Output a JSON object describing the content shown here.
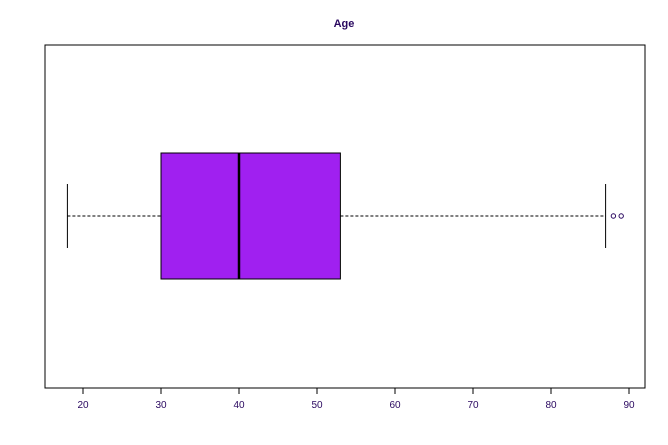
{
  "chart_data": {
    "type": "boxplot",
    "title": "Age",
    "xlabel": "",
    "ylabel": "",
    "orientation": "horizontal",
    "xlim": [
      15,
      92
    ],
    "x_ticks": [
      20,
      30,
      40,
      50,
      60,
      70,
      80,
      90
    ],
    "tick_labels": [
      "20",
      "30",
      "40",
      "50",
      "60",
      "70",
      "80",
      "90"
    ],
    "stats": {
      "whisker_low": 18,
      "q1": 30,
      "median": 40,
      "q3": 53,
      "whisker_high": 87
    },
    "outliers": [
      88,
      89
    ],
    "grid": false,
    "legend": "none",
    "colors": {
      "box_fill": "#A020F0",
      "box_border": "#000000",
      "text": "#2A0860",
      "axis": "#000000",
      "whisker": "#000000",
      "outlier": "#2A0860"
    }
  }
}
